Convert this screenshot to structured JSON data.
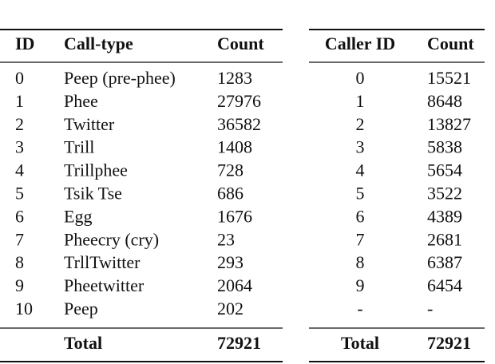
{
  "tables": [
    {
      "headers": [
        "ID",
        "Call-type",
        "Count"
      ],
      "rows": [
        [
          "0",
          "Peep (pre-phee)",
          "1283"
        ],
        [
          "1",
          "Phee",
          "27976"
        ],
        [
          "2",
          "Twitter",
          "36582"
        ],
        [
          "3",
          "Trill",
          "1408"
        ],
        [
          "4",
          "Trillphee",
          "728"
        ],
        [
          "5",
          "Tsik Tse",
          "686"
        ],
        [
          "6",
          "Egg",
          "1676"
        ],
        [
          "7",
          "Pheecry (cry)",
          "23"
        ],
        [
          "8",
          "TrllTwitter",
          "293"
        ],
        [
          "9",
          "Pheetwitter",
          "2064"
        ],
        [
          "10",
          "Peep",
          "202"
        ]
      ],
      "total": {
        "label": "Total",
        "value": "72921"
      }
    },
    {
      "headers": [
        "Caller ID",
        "Count"
      ],
      "rows": [
        [
          "0",
          "15521"
        ],
        [
          "1",
          "8648"
        ],
        [
          "2",
          "13827"
        ],
        [
          "3",
          "5838"
        ],
        [
          "4",
          "5654"
        ],
        [
          "5",
          "3522"
        ],
        [
          "6",
          "4389"
        ],
        [
          "7",
          "2681"
        ],
        [
          "8",
          "6387"
        ],
        [
          "9",
          "6454"
        ],
        [
          "-",
          "-"
        ]
      ],
      "total": {
        "label": "Total",
        "value": "72921"
      }
    }
  ]
}
